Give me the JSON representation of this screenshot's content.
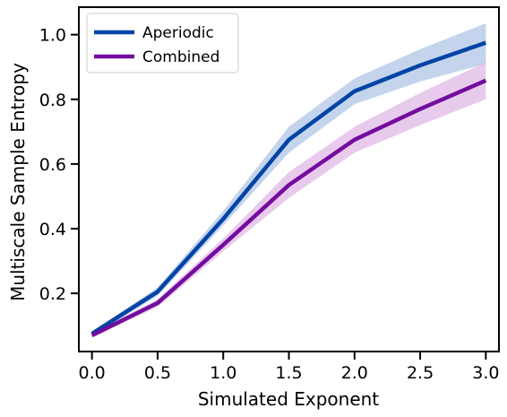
{
  "chart_data": {
    "type": "line",
    "title": "",
    "xlabel": "Simulated Exponent",
    "ylabel": "Multiscale Sample Entropy",
    "x": [
      0.0,
      0.5,
      1.0,
      1.5,
      2.0,
      2.5,
      3.0
    ],
    "xlim": [
      -0.1,
      3.1
    ],
    "ylim": [
      0.02,
      1.085
    ],
    "xticks": [
      0.0,
      0.5,
      1.0,
      1.5,
      2.0,
      2.5,
      3.0
    ],
    "xtick_labels": [
      "0.0",
      "0.5",
      "1.0",
      "1.5",
      "2.0",
      "2.5",
      "3.0"
    ],
    "yticks": [
      0.2,
      0.4,
      0.6,
      0.8,
      1.0
    ],
    "ytick_labels": [
      "0.2",
      "0.4",
      "0.6",
      "0.8",
      "1.0"
    ],
    "grid": false,
    "legend_position": "top-left",
    "series": [
      {
        "name": "Aperiodic",
        "color": "#0044a6",
        "band_color": "#9db7e0",
        "values": [
          0.075,
          0.205,
          0.43,
          0.675,
          0.825,
          0.905,
          0.975
        ],
        "lower": [
          0.068,
          0.192,
          0.41,
          0.635,
          0.785,
          0.855,
          0.91
        ],
        "upper": [
          0.082,
          0.218,
          0.455,
          0.715,
          0.865,
          0.955,
          1.035
        ]
      },
      {
        "name": "Combined",
        "color": "#730c9e",
        "band_color": "#d9a9e0",
        "values": [
          0.07,
          0.17,
          0.35,
          0.535,
          0.675,
          0.77,
          0.858
        ],
        "lower": [
          0.063,
          0.158,
          0.33,
          0.495,
          0.635,
          0.72,
          0.8
        ],
        "upper": [
          0.077,
          0.182,
          0.37,
          0.575,
          0.715,
          0.82,
          0.915
        ]
      }
    ]
  }
}
